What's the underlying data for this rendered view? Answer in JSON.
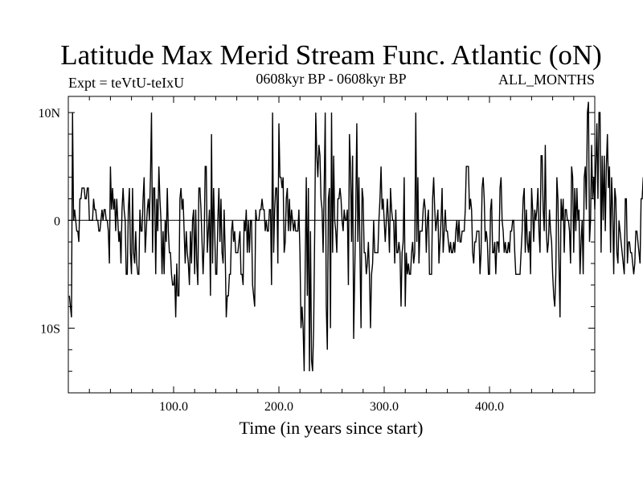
{
  "chart_data": {
    "type": "line",
    "title": "Latitude Max Merid Stream Func. Atlantic (oN)",
    "subtitle_left": "Expt = teVtU-teIxU",
    "subtitle_center": "0608kyr BP - 0608kyr BP",
    "subtitle_right": "ALL_MONTHS",
    "xlabel": "Time (in years since start)",
    "ylabel": "",
    "xlim": [
      0,
      500
    ],
    "ylim": [
      -16,
      11.5
    ],
    "x_ticks": [
      {
        "value": 100,
        "label": "100.0"
      },
      {
        "value": 200,
        "label": "200.0"
      },
      {
        "value": 300,
        "label": "300.0"
      },
      {
        "value": 400,
        "label": "400.0"
      }
    ],
    "y_ticks": [
      {
        "value": 10,
        "label": "10N"
      },
      {
        "value": 0,
        "label": "0"
      },
      {
        "value": -10,
        "label": "10S"
      }
    ],
    "zero_line": true,
    "grid": false,
    "series": [
      {
        "color": "#000000",
        "x_start": 1,
        "x_step": 1,
        "values": [
          -7,
          -8,
          -9,
          10,
          0,
          1,
          0,
          -1,
          -1,
          -2,
          2,
          2,
          3,
          3,
          3,
          2,
          2,
          3,
          3,
          0,
          0,
          0,
          0,
          2,
          1,
          1,
          0,
          0,
          -1,
          -1,
          0,
          1,
          0,
          1,
          1,
          0,
          0,
          -1,
          -4,
          5,
          1,
          3,
          1,
          2,
          -1,
          2,
          0,
          -2,
          -1,
          -4,
          1,
          3,
          1,
          0,
          -5,
          -5,
          1,
          3,
          -3,
          -5,
          3,
          -3,
          -4,
          -1,
          -4,
          -5,
          -5,
          1,
          -1,
          -1,
          2,
          4,
          -3,
          -1,
          1,
          2,
          0,
          4,
          10,
          -3,
          3,
          3,
          -5,
          2,
          -1,
          5,
          2,
          0,
          -5,
          -1,
          -5,
          0,
          -2,
          3,
          -1,
          -3,
          -3,
          -5,
          -6,
          -6,
          -5,
          -9,
          -4,
          -7,
          -7,
          2,
          3,
          1,
          2,
          -1,
          -4,
          -1,
          -3,
          -4,
          -6,
          -1,
          -4,
          0,
          1,
          -5,
          1,
          -4,
          -6,
          3,
          3,
          1,
          -2,
          -5,
          -2,
          5,
          5,
          -3,
          -1,
          1,
          -7,
          8,
          -4,
          3,
          -1,
          -5,
          -5,
          0,
          3,
          -2,
          2,
          -3,
          -4,
          1,
          -3,
          -9,
          -7,
          -7,
          -5,
          -5,
          -1,
          0,
          -2,
          -1,
          -3,
          -3,
          -3,
          -2,
          -1,
          -5,
          -5,
          -6,
          0,
          -1,
          1,
          -3,
          0,
          -3,
          0,
          0,
          -6,
          -7,
          -8,
          1,
          0,
          0,
          0,
          1,
          1,
          2,
          1,
          1,
          -1,
          0,
          -1,
          -1,
          1,
          1,
          -6,
          10,
          -3,
          1,
          3,
          3,
          -4,
          9,
          4,
          4,
          3,
          4,
          -3,
          -2,
          2,
          3,
          -1,
          2,
          -1,
          1,
          0,
          -1,
          0,
          -1,
          -1,
          -1,
          1,
          -3,
          -10,
          -8,
          -10,
          -14,
          -4,
          4,
          -7,
          3,
          -14,
          -1,
          -13,
          -14,
          -10,
          -1,
          10,
          6,
          4,
          7,
          6,
          2,
          1,
          -3,
          3,
          10,
          -8,
          -12,
          2,
          3,
          -10,
          10,
          -3,
          6,
          0,
          -1,
          -3,
          2,
          2,
          3,
          2,
          0,
          -1,
          1,
          0,
          0,
          1,
          -6,
          8,
          5,
          -2,
          6,
          -11,
          -5,
          1,
          9,
          -2,
          4,
          -3,
          -10,
          3,
          2,
          -3,
          -3,
          -5,
          -4,
          -2,
          -5,
          -10,
          -5,
          -4,
          0,
          -3,
          -3,
          -3,
          -3,
          0,
          2,
          5,
          1,
          2,
          0,
          -2,
          0,
          2,
          0,
          -3,
          3,
          1,
          0,
          0,
          -4,
          1,
          -3,
          -3,
          -2,
          -3,
          -8,
          -3,
          -2,
          4,
          -8,
          -3,
          -5,
          -4,
          -5,
          -5,
          -3,
          -2,
          -4,
          -3,
          10,
          -2,
          4,
          -4,
          -1,
          -1,
          -1,
          1,
          2,
          1,
          -3,
          0,
          1,
          -5,
          -5,
          -5,
          2,
          4,
          1,
          -1,
          0,
          1,
          -4,
          -2,
          0,
          3,
          -3,
          -1,
          1,
          -1,
          -1,
          -2,
          -3,
          -2,
          -3,
          -3,
          -2,
          -3,
          -1,
          0,
          -2,
          0,
          -2,
          -2,
          -1,
          -1,
          -1,
          1,
          5,
          5,
          5,
          1,
          2,
          1,
          -3,
          -4,
          -2,
          -2,
          -1,
          -1,
          -1,
          -5,
          -3,
          3,
          4,
          2,
          -2,
          -1,
          -2,
          -5,
          -5,
          1,
          2,
          -3,
          -3,
          -2,
          -5,
          -2,
          -2,
          -3,
          3,
          4,
          0,
          -1,
          -3,
          -2,
          -3,
          -3,
          -2,
          -3,
          -1,
          -1,
          0,
          0,
          -3,
          -5,
          -5,
          -5,
          -5,
          -5,
          -3,
          -1,
          2,
          3,
          -3,
          1,
          -2,
          -3,
          -1,
          -5,
          3,
          1,
          -2,
          1,
          0,
          1,
          3,
          -1,
          -3,
          6,
          6,
          1,
          -1,
          7,
          -1,
          -3,
          -2,
          1,
          -1,
          -2,
          -5,
          -7,
          -8,
          -5,
          4,
          2,
          -4,
          -9,
          2,
          0,
          2,
          -3,
          1,
          1,
          0,
          0,
          -1,
          -4,
          5,
          4,
          -3,
          3,
          -1,
          3,
          0,
          1,
          -5,
          -2,
          0,
          -5,
          4,
          5,
          1,
          10,
          11,
          -2,
          0,
          7,
          2,
          4,
          1,
          5,
          9,
          2,
          10,
          10,
          -3,
          6,
          0,
          6,
          -1,
          5,
          8,
          3,
          5,
          -3,
          4,
          1,
          -5,
          3,
          2,
          -3,
          -4,
          0,
          -1,
          -2,
          -3,
          -4,
          -5,
          2,
          2,
          -4,
          -2,
          -2,
          -3,
          -3,
          -4,
          -5,
          -4,
          -1,
          -1,
          -2,
          -3,
          -4,
          2,
          2,
          4,
          1,
          2,
          2,
          -2,
          1,
          3,
          7,
          7,
          0,
          3,
          4,
          5,
          2,
          4,
          5,
          9,
          1,
          6,
          0,
          -5,
          4,
          1,
          6,
          2,
          1,
          7,
          4,
          -4,
          1,
          4,
          -1,
          4,
          -4,
          3,
          -8,
          3,
          5,
          5,
          5,
          -1,
          -3,
          -1,
          -3,
          1,
          1,
          4,
          -1,
          -2,
          3,
          6,
          5,
          2,
          1,
          8,
          3,
          1,
          0,
          1,
          3,
          -1,
          -5,
          1,
          -1,
          0,
          -2,
          2,
          1,
          -1,
          -3,
          -1,
          0,
          -1,
          -3,
          -5,
          1,
          -1,
          3,
          7,
          2,
          8,
          10,
          6,
          5,
          1,
          2,
          1,
          2,
          2,
          1,
          10,
          10,
          4,
          4,
          9,
          5,
          10,
          10,
          2,
          0,
          7,
          4,
          6,
          1,
          3,
          8,
          5,
          10,
          3,
          10,
          10,
          5
        ]
      }
    ]
  }
}
